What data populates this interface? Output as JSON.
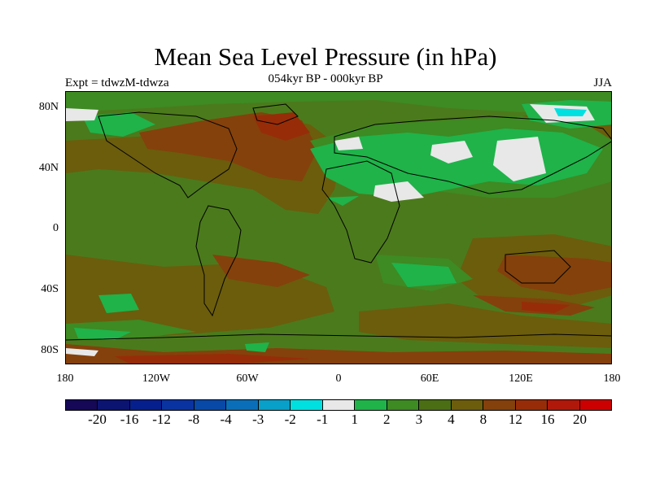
{
  "title": "Mean Sea Level Pressure (in hPa)",
  "subtitle": "054kyr BP - 000kyr BP",
  "left_label": "Expt = tdwzM-tdwza",
  "right_label": "JJA",
  "map": {
    "type": "global lat-lon filled contour",
    "projection": "cylindrical equidistant",
    "lon_range": [
      -180,
      180
    ],
    "lat_range": [
      -90,
      90
    ],
    "background_color": "#4b7a1c",
    "lat_ticks": [
      "80N",
      "40N",
      "0",
      "40S",
      "80S"
    ],
    "lon_ticks": [
      "180",
      "120W",
      "60W",
      "0",
      "60E",
      "120E",
      "180"
    ]
  },
  "colorbar": {
    "colors": [
      "#160857",
      "#0c1472",
      "#05208c",
      "#0933a0",
      "#0849a8",
      "#0a6fb8",
      "#089fc8",
      "#00e0e0",
      "#e8e8e8",
      "#1fb34a",
      "#3e8a23",
      "#4b6e15",
      "#6b5d0c",
      "#84410b",
      "#962d08",
      "#b0190a",
      "#cc0000"
    ],
    "labels": [
      "-20",
      "-16",
      "-12",
      "-8",
      "-4",
      "-3",
      "-2",
      "-1",
      "1",
      "2",
      "3",
      "4",
      "8",
      "12",
      "16",
      "20"
    ]
  }
}
